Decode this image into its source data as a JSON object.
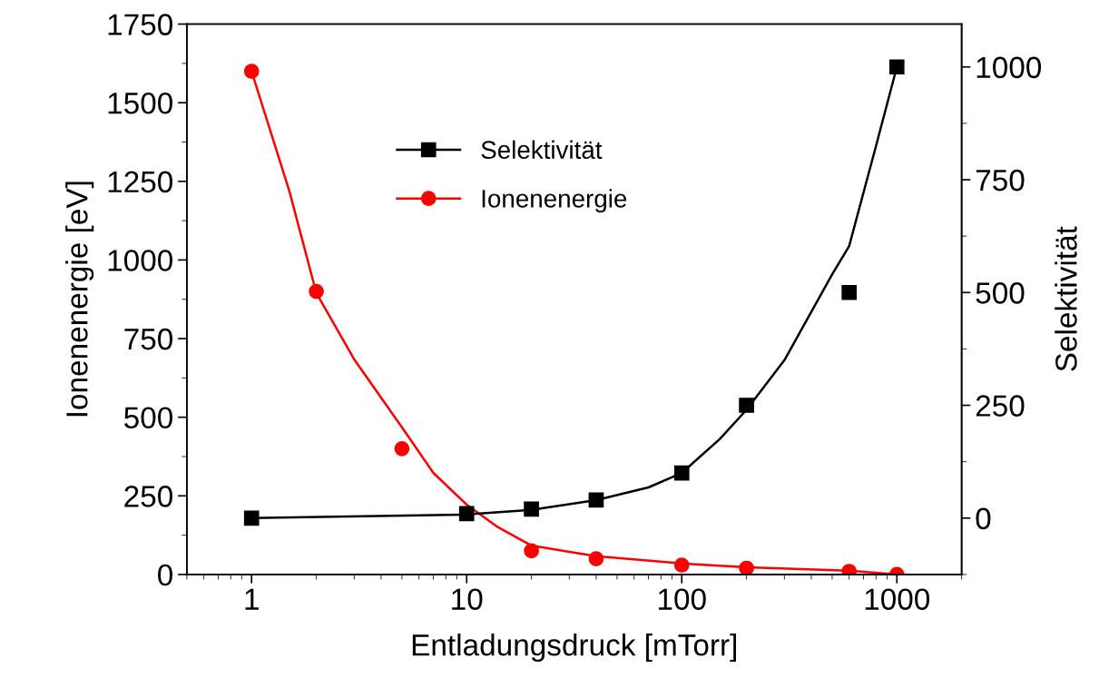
{
  "chart_data": {
    "type": "scatter",
    "xlabel": "Entladungsdruck [mTorr]",
    "ylabel": "Ionenenergie [eV]",
    "y2label": "Selektivität",
    "log": "x",
    "xlim": [
      0.5,
      2000
    ],
    "xticks": [
      1,
      10,
      100,
      1000
    ],
    "ylim": [
      0,
      1750
    ],
    "yticks": [
      0,
      250,
      500,
      750,
      1000,
      1250,
      1500,
      1750
    ],
    "y2lim": [
      -125,
      1095
    ],
    "y2ticks": [
      0,
      250,
      500,
      750,
      1000
    ],
    "grid": false,
    "legend": "top",
    "series": [
      {
        "name": "Selektivität",
        "axis": "y2",
        "marker": "square",
        "color": "#000000",
        "x": [
          1,
          10,
          20,
          40,
          100,
          200,
          600,
          1000
        ],
        "values": [
          0,
          10,
          20,
          40,
          100,
          250,
          500,
          1000
        ]
      },
      {
        "name": "Ionenenergie",
        "axis": "y",
        "marker": "circle",
        "color": "#ff0000",
        "x": [
          1,
          2,
          5,
          10,
          20,
          40,
          100,
          200,
          600,
          1000
        ],
        "values": [
          1600,
          900,
          400,
          null,
          75,
          50,
          30,
          20,
          10,
          0
        ]
      },
      {
        "type": "line",
        "axis": "y2",
        "marker": "none",
        "color": "#000000",
        "x": [
          1,
          10,
          20,
          40,
          70,
          100,
          150,
          200,
          300,
          500,
          600,
          800,
          1000
        ],
        "values": [
          0,
          8,
          18,
          40,
          68,
          100,
          175,
          240,
          350,
          540,
          603,
          825,
          1000
        ]
      },
      {
        "type": "line",
        "axis": "y",
        "marker": "none",
        "color": "#ff0000",
        "x": [
          1,
          1.5,
          2,
          3,
          5,
          7,
          10,
          14,
          20,
          30,
          40,
          100,
          200,
          600,
          1000
        ],
        "values": [
          1600,
          1218,
          895,
          684,
          468,
          323,
          222,
          150,
          92,
          72,
          58,
          35,
          23,
          12,
          0
        ]
      }
    ]
  }
}
